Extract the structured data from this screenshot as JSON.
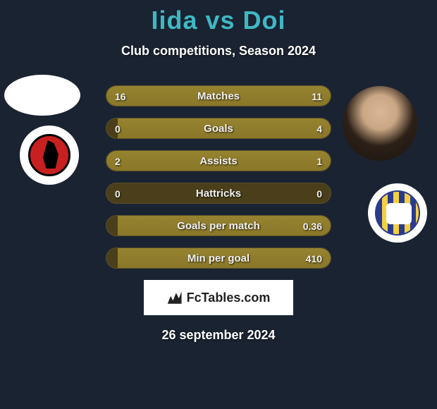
{
  "title": "Iida vs Doi",
  "subtitle": "Club competitions, Season 2024",
  "background_color": "#1a2332",
  "title_color": "#3fb8c4",
  "text_color": "#ffffff",
  "bar_colors": {
    "track": "#4a3f1a",
    "fill": "#968330"
  },
  "bars": [
    {
      "label": "Matches",
      "left": "16",
      "right": "11",
      "left_pct": 55,
      "right_pct": 45
    },
    {
      "label": "Goals",
      "left": "0",
      "right": "4",
      "left_pct": 0,
      "right_pct": 95
    },
    {
      "label": "Assists",
      "left": "2",
      "right": "1",
      "left_pct": 62,
      "right_pct": 38
    },
    {
      "label": "Hattricks",
      "left": "0",
      "right": "0",
      "left_pct": 0,
      "right_pct": 0
    },
    {
      "label": "Goals per match",
      "left": "",
      "right": "0.36",
      "left_pct": 0,
      "right_pct": 95
    },
    {
      "label": "Min per goal",
      "left": "",
      "right": "410",
      "left_pct": 0,
      "right_pct": 95
    }
  ],
  "brand": "FcTables.com",
  "date": "26 september 2024",
  "player_left_name": "Iida",
  "player_right_name": "Doi",
  "club_left_name": "roasso-kumamoto",
  "club_right_name": "montedio-yamagata"
}
